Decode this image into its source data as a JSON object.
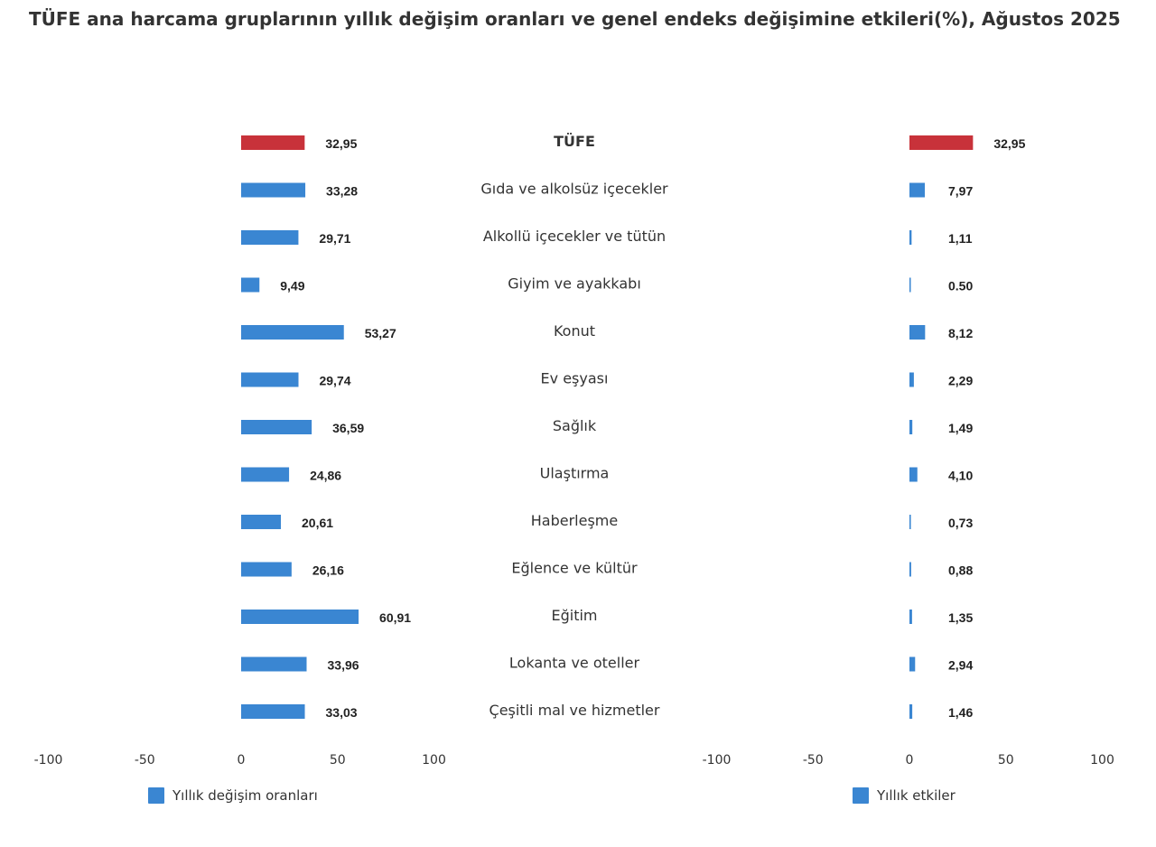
{
  "title": "TÜFE ana harcama gruplarının yıllık değişim oranları ve genel endeks değişimine etkileri(%), Ağustos 2025",
  "colors": {
    "highlight": "#c8323a",
    "bar": "#3a86d2"
  },
  "chart_data": {
    "type": "bar",
    "orientation": "horizontal",
    "title": "TÜFE ana harcama gruplarının yıllık değişim oranları ve genel endeks değişimine etkileri(%), Ağustos 2025",
    "categories": [
      "TÜFE",
      "Gıda ve alkolsüz içecekler",
      "Alkollü içecekler ve tütün",
      "Giyim ve ayakkabı",
      "Konut",
      "Ev eşyası",
      "Sağlık",
      "Ulaştırma",
      "Haberleşme",
      "Eğlence ve kültür",
      "Eğitim",
      "Lokanta ve oteller",
      "Çeşitli mal ve hizmetler"
    ],
    "highlight_category": "TÜFE",
    "series": [
      {
        "name": "Yıllık değişim oranları",
        "values": [
          32.95,
          33.28,
          29.71,
          9.49,
          53.27,
          29.74,
          36.59,
          24.86,
          20.61,
          26.16,
          60.91,
          33.96,
          33.03
        ],
        "labels": [
          "32,95",
          "33,28",
          "29,71",
          "9,49",
          "53,27",
          "29,74",
          "36,59",
          "24,86",
          "20,61",
          "26,16",
          "60,91",
          "33,96",
          "33,03"
        ],
        "xlim": [
          -100,
          100
        ],
        "ticks": [
          "-100",
          "-50",
          "0",
          "50",
          "100"
        ]
      },
      {
        "name": "Yıllık etkiler",
        "values": [
          32.95,
          7.97,
          1.11,
          0.5,
          8.12,
          2.29,
          1.49,
          4.1,
          0.73,
          0.88,
          1.35,
          2.94,
          1.46
        ],
        "labels": [
          "32,95",
          "7,97",
          "1,11",
          "0.50",
          "8,12",
          "2,29",
          "1,49",
          "4,10",
          "0,73",
          "0,88",
          "1,35",
          "2,94",
          "1,46"
        ],
        "xlim": [
          -100,
          100
        ],
        "ticks": [
          "-100",
          "-50",
          "0",
          "50",
          "100"
        ]
      }
    ],
    "legend": [
      "Yıllık değişim oranları",
      "Yıllık etkiler"
    ],
    "grid": false
  }
}
